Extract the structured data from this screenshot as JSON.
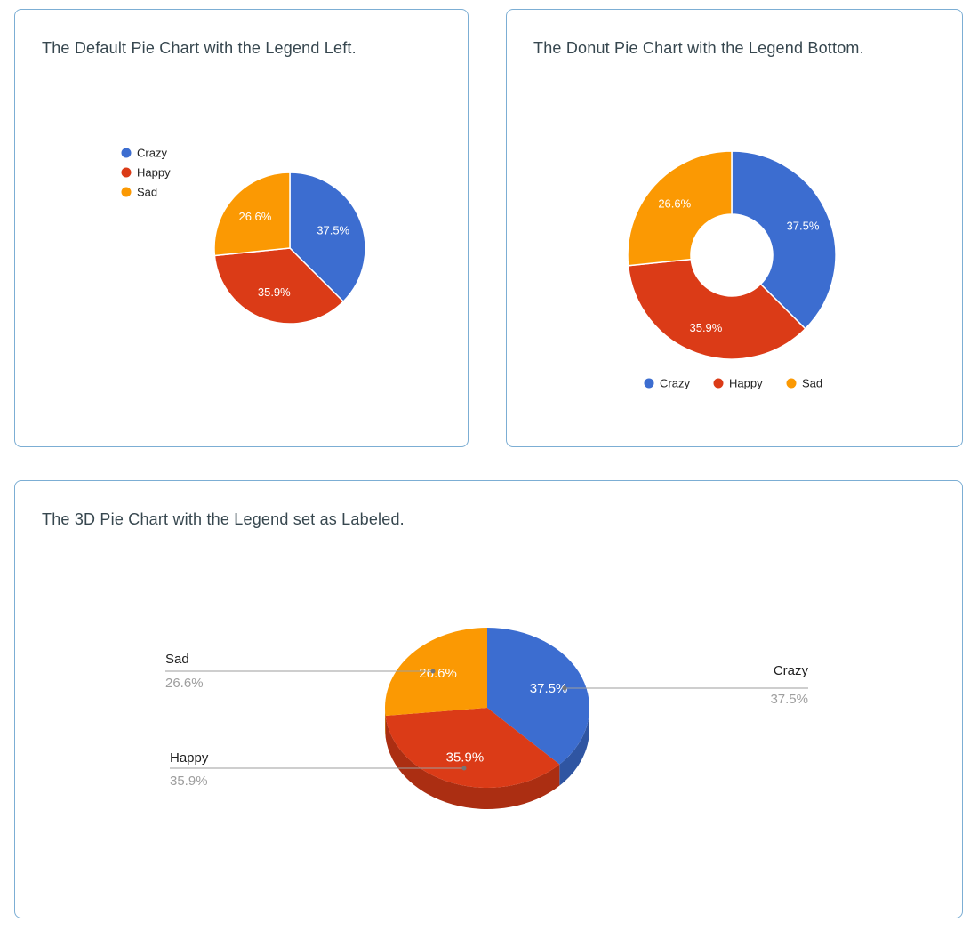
{
  "theme": {
    "card_border": "#7CAED4",
    "title_color": "#37474F",
    "slice_label_color": "#FFFFFF",
    "legend_text_color": "#222222",
    "callout_name_color": "#212121",
    "callout_percent_color": "#9E9E9E",
    "callout_line_color": "#9E9E9E",
    "callout_dot_color": "#757575"
  },
  "chart_data": [
    {
      "type": "pie",
      "variant": "default",
      "title": "The Default Pie Chart with the Legend Left.",
      "legend_position": "left",
      "categories": [
        "Crazy",
        "Happy",
        "Sad"
      ],
      "values_percent": [
        37.5,
        35.9,
        26.6
      ],
      "slice_labels": [
        "37.5%",
        "35.9%",
        "26.6%"
      ],
      "colors": [
        "#3C6DD0",
        "#DB3B17",
        "#FB9903"
      ]
    },
    {
      "type": "pie",
      "variant": "donut",
      "title": "The Donut Pie Chart with the Legend Bottom.",
      "legend_position": "bottom",
      "categories": [
        "Crazy",
        "Happy",
        "Sad"
      ],
      "values_percent": [
        37.5,
        35.9,
        26.6
      ],
      "slice_labels": [
        "37.5%",
        "35.9%",
        "26.6%"
      ],
      "colors": [
        "#3C6DD0",
        "#DB3B17",
        "#FB9903"
      ]
    },
    {
      "type": "pie",
      "variant": "3d",
      "title": "The 3D Pie Chart with the Legend set as Labeled.",
      "legend_position": "labeled",
      "categories": [
        "Crazy",
        "Happy",
        "Sad"
      ],
      "values_percent": [
        37.5,
        35.9,
        26.6
      ],
      "slice_labels": [
        "37.5%",
        "35.9%",
        "26.6%"
      ],
      "colors": [
        "#3C6DD0",
        "#DB3B17",
        "#FB9903"
      ],
      "callouts": [
        {
          "label": "Crazy",
          "percent": "37.5%"
        },
        {
          "label": "Happy",
          "percent": "35.9%"
        },
        {
          "label": "Sad",
          "percent": "26.6%"
        }
      ]
    }
  ]
}
